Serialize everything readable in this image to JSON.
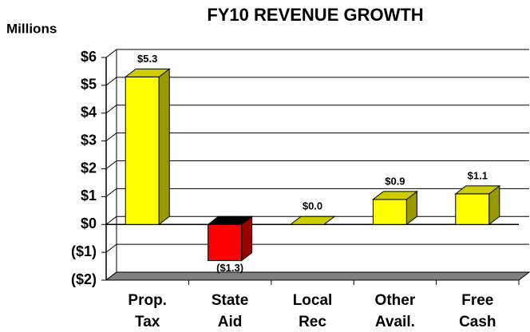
{
  "chart_data": {
    "type": "bar3d",
    "title": "FY10 REVENUE GROWTH",
    "y_axis_label": "Millions",
    "categories": [
      [
        "Prop.",
        "Tax"
      ],
      [
        "State",
        "Aid"
      ],
      [
        "Local",
        "Rec"
      ],
      [
        "Other",
        "Avail."
      ],
      [
        "Free",
        "Cash"
      ]
    ],
    "values": [
      5.3,
      -1.3,
      0.0,
      0.9,
      1.1
    ],
    "value_labels": [
      "$5.3",
      "($1.3)",
      "$0.0",
      "$0.9",
      "$1.1"
    ],
    "colors": [
      "#ffff00",
      "#ff0000",
      "#ffff00",
      "#ffff00",
      "#ffff00"
    ],
    "ylim": [
      -2,
      6
    ],
    "yticks": [
      {
        "value": -2,
        "label": "($2)"
      },
      {
        "value": -1,
        "label": "($1)"
      },
      {
        "value": 0,
        "label": "$0"
      },
      {
        "value": 1,
        "label": "$1"
      },
      {
        "value": 2,
        "label": "$2"
      },
      {
        "value": 3,
        "label": "$3"
      },
      {
        "value": 4,
        "label": "$4"
      },
      {
        "value": 5,
        "label": "$5"
      },
      {
        "value": 6,
        "label": "$6"
      }
    ],
    "grid": true
  }
}
